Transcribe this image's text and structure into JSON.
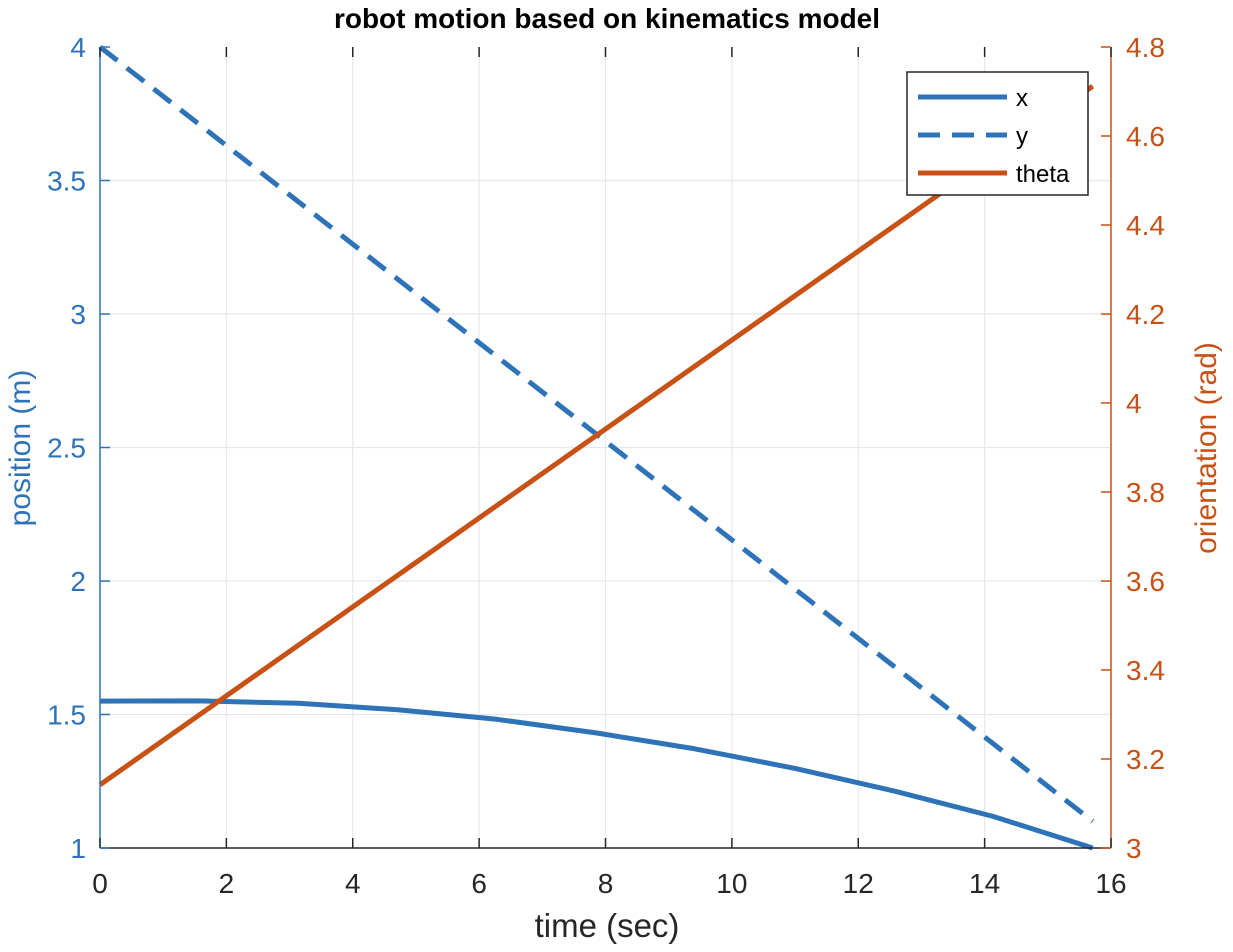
{
  "chart_data": {
    "type": "line",
    "title": "robot motion based on kinematics model",
    "xlabel": "time (sec)",
    "ylabel_left": "position (m)",
    "ylabel_right": "orientation (rad)",
    "xlim": [
      0,
      16
    ],
    "ylim_left": [
      1,
      4
    ],
    "ylim_right": [
      3,
      4.8
    ],
    "x_ticks": [
      0,
      2,
      4,
      6,
      8,
      10,
      12,
      14,
      16
    ],
    "x_tick_labels": [
      "0",
      "2",
      "4",
      "6",
      "8",
      "10",
      "12",
      "14",
      "16"
    ],
    "yl_ticks": [
      1,
      1.5,
      2,
      2.5,
      3,
      3.5,
      4
    ],
    "yl_tick_labels": [
      "1",
      "1.5",
      "2",
      "2.5",
      "3",
      "3.5",
      "4"
    ],
    "yr_ticks": [
      3,
      3.2,
      3.4,
      3.6,
      3.8,
      4,
      4.2,
      4.4,
      4.6,
      4.8
    ],
    "yr_tick_labels": [
      "3",
      "3.2",
      "3.4",
      "3.6",
      "3.8",
      "4",
      "4.2",
      "4.4",
      "4.6",
      "4.8"
    ],
    "grid": true,
    "legend_position": "top-right",
    "colors": {
      "left_axis": "#2E73B8",
      "right_axis": "#C85116",
      "axis_black": "#262626",
      "grid": "#E3E8EE"
    },
    "series": [
      {
        "name": "x",
        "axis": "left",
        "style": "solid",
        "color": "#2E73B8",
        "x": [
          0,
          1.57,
          3.14,
          4.71,
          6.28,
          7.85,
          9.42,
          11.0,
          12.57,
          14.14,
          15.71
        ],
        "y": [
          1.55,
          1.551,
          1.542,
          1.518,
          1.482,
          1.431,
          1.371,
          1.298,
          1.213,
          1.118,
          1.0
        ]
      },
      {
        "name": "y",
        "axis": "left",
        "style": "dashed",
        "color": "#2E73B8",
        "x": [
          0,
          15.71
        ],
        "y": [
          4.0,
          1.1
        ]
      },
      {
        "name": "theta",
        "axis": "right",
        "style": "solid",
        "color": "#C85116",
        "x": [
          0,
          15.71
        ],
        "y": [
          3.142,
          4.712
        ]
      }
    ]
  }
}
